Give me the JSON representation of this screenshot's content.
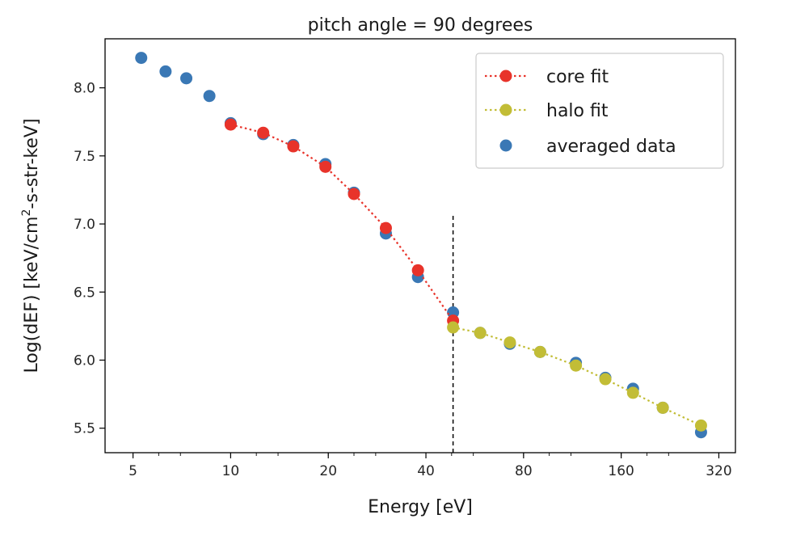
{
  "chart_data": {
    "type": "scatter",
    "title": "pitch angle = 90 degrees",
    "xlabel": "Energy [eV]",
    "ylabel_main": "Log(dEF) [keV/cm",
    "ylabel_sup": "2",
    "ylabel_tail": "-s-str-keV]",
    "xscale": "log2",
    "xlim": [
      4.1,
      360
    ],
    "ylim": [
      5.32,
      8.36
    ],
    "x_ticks": [
      5,
      10,
      20,
      40,
      80,
      160,
      320
    ],
    "x_tick_labels": [
      "5",
      "10",
      "20",
      "40",
      "80",
      "160",
      "320"
    ],
    "y_ticks": [
      5.5,
      6.0,
      6.5,
      7.0,
      7.5,
      8.0
    ],
    "y_tick_labels": [
      "5.5",
      "6.0",
      "6.5",
      "7.0",
      "7.5",
      "8.0"
    ],
    "vline": {
      "x": 48.5,
      "y_top": 7.06,
      "color": "#000000"
    },
    "series": [
      {
        "name": "averaged data",
        "kind": "scatter",
        "color": "#3a78b5",
        "x": [
          5.3,
          6.3,
          7.3,
          8.6,
          10.0,
          12.6,
          15.6,
          19.6,
          24.0,
          30.1,
          37.8,
          48.5,
          58.8,
          72.6,
          90.0,
          116.0,
          143.0,
          174.0,
          215.0,
          282.0
        ],
        "y": [
          8.22,
          8.12,
          8.07,
          7.94,
          7.74,
          7.66,
          7.58,
          7.44,
          7.23,
          6.93,
          6.61,
          6.35,
          6.2,
          6.12,
          6.06,
          5.98,
          5.87,
          5.79,
          5.65,
          5.47
        ]
      },
      {
        "name": "core fit",
        "kind": "line-marker",
        "color": "#e8332a",
        "x": [
          10.0,
          12.6,
          15.6,
          19.6,
          24.0,
          30.1,
          37.8,
          48.5
        ],
        "y": [
          7.73,
          7.67,
          7.57,
          7.42,
          7.22,
          6.97,
          6.66,
          6.29
        ]
      },
      {
        "name": "halo fit",
        "kind": "line-marker",
        "color": "#c2bd36",
        "x": [
          48.5,
          58.8,
          72.6,
          90.0,
          116.0,
          143.0,
          174.0,
          215.0,
          282.0
        ],
        "y": [
          6.24,
          6.2,
          6.13,
          6.06,
          5.96,
          5.86,
          5.76,
          5.65,
          5.52
        ]
      }
    ],
    "legend": {
      "placement": "top-right",
      "entries": [
        "core fit",
        "halo fit",
        "averaged data"
      ]
    }
  }
}
